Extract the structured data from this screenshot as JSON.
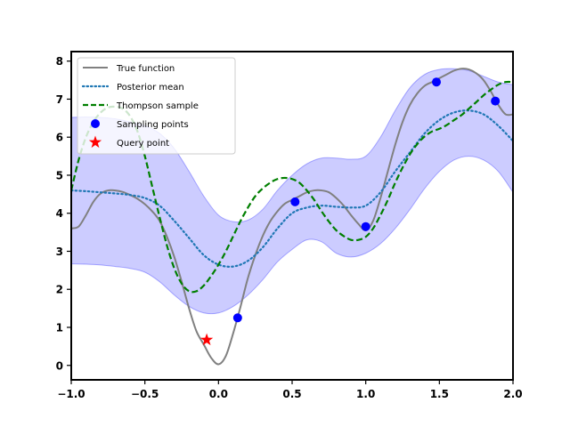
{
  "chart_data": {
    "type": "line",
    "title": "",
    "xlabel": "",
    "ylabel": "",
    "xlim": [
      -1.0,
      2.0
    ],
    "ylim": [
      -0.38,
      8.25
    ],
    "xticks": [
      -1.0,
      -0.5,
      0.0,
      0.5,
      1.0,
      1.5,
      2.0
    ],
    "xtick_labels": [
      "−1.0",
      "−0.5",
      "0.0",
      "0.5",
      "1.0",
      "1.5",
      "2.0"
    ],
    "yticks": [
      0,
      1,
      2,
      3,
      4,
      5,
      6,
      7,
      8
    ],
    "ytick_labels": [
      "0",
      "1",
      "2",
      "3",
      "4",
      "5",
      "6",
      "7",
      "8"
    ],
    "grid": false,
    "legend_position": "top-left",
    "series": [
      {
        "name": "True function",
        "kind": "line",
        "style": "solid",
        "color": "#808080",
        "points": [
          [
            -1.0,
            3.6
          ],
          [
            -0.95,
            3.65
          ],
          [
            -0.9,
            3.95
          ],
          [
            -0.85,
            4.3
          ],
          [
            -0.8,
            4.52
          ],
          [
            -0.75,
            4.6
          ],
          [
            -0.7,
            4.6
          ],
          [
            -0.65,
            4.56
          ],
          [
            -0.6,
            4.48
          ],
          [
            -0.55,
            4.38
          ],
          [
            -0.5,
            4.24
          ],
          [
            -0.45,
            4.05
          ],
          [
            -0.4,
            3.8
          ],
          [
            -0.35,
            3.38
          ],
          [
            -0.3,
            2.85
          ],
          [
            -0.25,
            2.2
          ],
          [
            -0.2,
            1.5
          ],
          [
            -0.15,
            0.9
          ],
          [
            -0.1,
            0.55
          ],
          [
            -0.05,
            0.2
          ],
          [
            0.0,
            0.03
          ],
          [
            0.05,
            0.25
          ],
          [
            0.1,
            0.85
          ],
          [
            0.15,
            1.55
          ],
          [
            0.2,
            2.3
          ],
          [
            0.25,
            2.9
          ],
          [
            0.3,
            3.4
          ],
          [
            0.35,
            3.78
          ],
          [
            0.4,
            4.05
          ],
          [
            0.45,
            4.25
          ],
          [
            0.5,
            4.35
          ],
          [
            0.55,
            4.45
          ],
          [
            0.6,
            4.55
          ],
          [
            0.65,
            4.6
          ],
          [
            0.7,
            4.6
          ],
          [
            0.75,
            4.55
          ],
          [
            0.8,
            4.4
          ],
          [
            0.85,
            4.2
          ],
          [
            0.9,
            3.95
          ],
          [
            0.95,
            3.72
          ],
          [
            1.0,
            3.55
          ],
          [
            1.05,
            3.8
          ],
          [
            1.1,
            4.4
          ],
          [
            1.15,
            5.1
          ],
          [
            1.2,
            5.8
          ],
          [
            1.25,
            6.4
          ],
          [
            1.3,
            6.85
          ],
          [
            1.35,
            7.15
          ],
          [
            1.4,
            7.35
          ],
          [
            1.45,
            7.45
          ],
          [
            1.5,
            7.55
          ],
          [
            1.55,
            7.65
          ],
          [
            1.6,
            7.75
          ],
          [
            1.65,
            7.8
          ],
          [
            1.7,
            7.78
          ],
          [
            1.75,
            7.68
          ],
          [
            1.8,
            7.5
          ],
          [
            1.85,
            7.2
          ],
          [
            1.9,
            6.85
          ],
          [
            1.95,
            6.6
          ],
          [
            2.0,
            6.6
          ]
        ]
      },
      {
        "name": "Posterior mean",
        "kind": "line",
        "style": "dotted",
        "color": "#1f77b4",
        "points": [
          [
            -1.0,
            4.6
          ],
          [
            -0.9,
            4.58
          ],
          [
            -0.8,
            4.55
          ],
          [
            -0.7,
            4.52
          ],
          [
            -0.6,
            4.48
          ],
          [
            -0.5,
            4.4
          ],
          [
            -0.4,
            4.2
          ],
          [
            -0.3,
            3.8
          ],
          [
            -0.2,
            3.35
          ],
          [
            -0.1,
            2.9
          ],
          [
            0.0,
            2.65
          ],
          [
            0.1,
            2.6
          ],
          [
            0.2,
            2.75
          ],
          [
            0.3,
            3.1
          ],
          [
            0.4,
            3.6
          ],
          [
            0.5,
            4.0
          ],
          [
            0.6,
            4.15
          ],
          [
            0.7,
            4.2
          ],
          [
            0.8,
            4.17
          ],
          [
            0.9,
            4.15
          ],
          [
            1.0,
            4.2
          ],
          [
            1.1,
            4.55
          ],
          [
            1.2,
            5.1
          ],
          [
            1.3,
            5.6
          ],
          [
            1.4,
            6.1
          ],
          [
            1.5,
            6.45
          ],
          [
            1.6,
            6.65
          ],
          [
            1.7,
            6.7
          ],
          [
            1.8,
            6.6
          ],
          [
            1.9,
            6.3
          ],
          [
            2.0,
            5.9
          ]
        ]
      },
      {
        "name": "Thompson sample",
        "kind": "line",
        "style": "dashed",
        "color": "#007f00",
        "points": [
          [
            -1.0,
            4.6
          ],
          [
            -0.95,
            5.4
          ],
          [
            -0.9,
            6.0
          ],
          [
            -0.85,
            6.4
          ],
          [
            -0.8,
            6.65
          ],
          [
            -0.75,
            6.78
          ],
          [
            -0.7,
            6.8
          ],
          [
            -0.65,
            6.75
          ],
          [
            -0.6,
            6.55
          ],
          [
            -0.55,
            6.15
          ],
          [
            -0.5,
            5.5
          ],
          [
            -0.45,
            4.7
          ],
          [
            -0.4,
            3.9
          ],
          [
            -0.35,
            3.15
          ],
          [
            -0.3,
            2.55
          ],
          [
            -0.25,
            2.15
          ],
          [
            -0.2,
            1.95
          ],
          [
            -0.15,
            1.95
          ],
          [
            -0.1,
            2.1
          ],
          [
            -0.05,
            2.35
          ],
          [
            0.0,
            2.65
          ],
          [
            0.05,
            3.0
          ],
          [
            0.1,
            3.4
          ],
          [
            0.15,
            3.8
          ],
          [
            0.2,
            4.15
          ],
          [
            0.25,
            4.45
          ],
          [
            0.3,
            4.65
          ],
          [
            0.35,
            4.8
          ],
          [
            0.4,
            4.9
          ],
          [
            0.45,
            4.93
          ],
          [
            0.5,
            4.9
          ],
          [
            0.55,
            4.8
          ],
          [
            0.6,
            4.6
          ],
          [
            0.65,
            4.35
          ],
          [
            0.7,
            4.05
          ],
          [
            0.75,
            3.78
          ],
          [
            0.8,
            3.55
          ],
          [
            0.85,
            3.4
          ],
          [
            0.9,
            3.3
          ],
          [
            0.95,
            3.3
          ],
          [
            1.0,
            3.38
          ],
          [
            1.05,
            3.6
          ],
          [
            1.1,
            3.95
          ],
          [
            1.15,
            4.35
          ],
          [
            1.2,
            4.8
          ],
          [
            1.25,
            5.2
          ],
          [
            1.3,
            5.55
          ],
          [
            1.35,
            5.82
          ],
          [
            1.4,
            6.02
          ],
          [
            1.45,
            6.15
          ],
          [
            1.5,
            6.22
          ],
          [
            1.55,
            6.32
          ],
          [
            1.6,
            6.45
          ],
          [
            1.65,
            6.58
          ],
          [
            1.7,
            6.75
          ],
          [
            1.75,
            6.92
          ],
          [
            1.8,
            7.1
          ],
          [
            1.85,
            7.25
          ],
          [
            1.9,
            7.38
          ],
          [
            1.95,
            7.45
          ],
          [
            2.0,
            7.45
          ]
        ]
      },
      {
        "name": "Sampling points",
        "kind": "scatter",
        "marker": "circle",
        "color": "#0000ff",
        "points": [
          [
            0.13,
            1.25
          ],
          [
            0.52,
            4.3
          ],
          [
            1.0,
            3.65
          ],
          [
            1.48,
            7.45
          ],
          [
            1.88,
            6.95
          ]
        ]
      },
      {
        "name": "Query point",
        "kind": "scatter",
        "marker": "star",
        "color": "#ff0000",
        "points": [
          [
            -0.08,
            0.67
          ]
        ]
      }
    ],
    "confidence_band": {
      "color": "#0000ff",
      "opacity": 0.2,
      "x": [
        -1.0,
        -0.9,
        -0.8,
        -0.7,
        -0.6,
        -0.5,
        -0.4,
        -0.3,
        -0.2,
        -0.1,
        0.0,
        0.1,
        0.2,
        0.3,
        0.4,
        0.5,
        0.6,
        0.7,
        0.8,
        0.9,
        1.0,
        1.1,
        1.2,
        1.3,
        1.4,
        1.5,
        1.6,
        1.7,
        1.8,
        1.9,
        2.0
      ],
      "upper": [
        6.52,
        6.53,
        6.52,
        6.48,
        6.4,
        6.3,
        6.1,
        5.7,
        5.1,
        4.45,
        3.95,
        3.78,
        3.82,
        4.1,
        4.6,
        5.0,
        5.3,
        5.45,
        5.45,
        5.42,
        5.5,
        6.0,
        6.7,
        7.3,
        7.65,
        7.78,
        7.8,
        7.75,
        7.6,
        7.45,
        7.38
      ],
      "lower": [
        2.67,
        2.66,
        2.64,
        2.6,
        2.55,
        2.45,
        2.2,
        1.85,
        1.55,
        1.38,
        1.38,
        1.55,
        1.85,
        2.25,
        2.72,
        3.05,
        3.3,
        3.25,
        2.95,
        2.85,
        2.95,
        3.2,
        3.6,
        4.1,
        4.65,
        5.1,
        5.4,
        5.5,
        5.4,
        5.1,
        4.55
      ]
    }
  }
}
